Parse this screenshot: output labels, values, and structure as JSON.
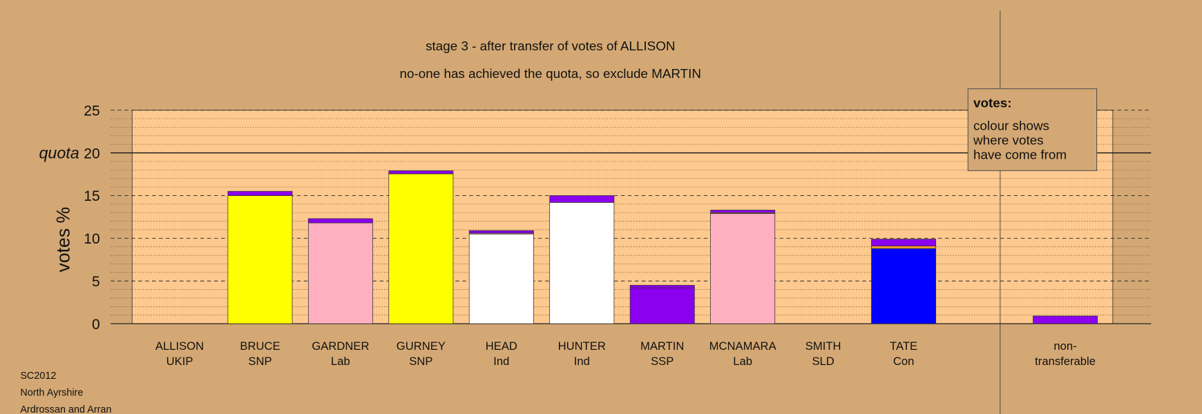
{
  "chart_data": {
    "type": "stacked-bar",
    "title": "stage 3 - after transfer of votes of ALLISON",
    "subtitle": "no-one has achieved the quota, so exclude MARTIN",
    "y_label": "votes %",
    "ylim": [
      0,
      25
    ],
    "yticks": [
      0,
      5,
      10,
      15,
      20,
      25
    ],
    "minor_yticks": [
      1,
      2,
      3,
      4,
      6,
      7,
      8,
      9,
      11,
      12,
      13,
      14,
      16,
      17,
      18,
      19,
      21,
      22,
      23,
      24
    ],
    "quota": 20,
    "quota_label": "quota",
    "categories": [
      [
        "ALLISON",
        "UKIP"
      ],
      [
        "BRUCE",
        "SNP"
      ],
      [
        "GARDNER",
        "Lab"
      ],
      [
        "GURNEY",
        "SNP"
      ],
      [
        "HEAD",
        "Ind"
      ],
      [
        "HUNTER",
        "Ind"
      ],
      [
        "MARTIN",
        "SSP"
      ],
      [
        "MCNAMARA",
        "Lab"
      ],
      [
        "SMITH",
        "SLD"
      ],
      [
        "TATE",
        "Con"
      ],
      [
        "non-",
        "transferable"
      ]
    ],
    "stacks": [
      [],
      [
        {
          "color": "#ffff00",
          "value": 15.0
        },
        {
          "color": "#8b00ee",
          "value": 0.5
        }
      ],
      [
        {
          "color": "#ffb0c0",
          "value": 11.8
        },
        {
          "color": "#8b00ee",
          "value": 0.5
        }
      ],
      [
        {
          "color": "#ffff00",
          "value": 17.55
        },
        {
          "color": "#8b00ee",
          "value": 0.35
        }
      ],
      [
        {
          "color": "#ffffff",
          "value": 10.5
        },
        {
          "color": "#ffb0c0",
          "value": 0.1
        },
        {
          "color": "#8b00ee",
          "value": 0.3
        }
      ],
      [
        {
          "color": "#ffffff",
          "value": 14.2
        },
        {
          "color": "#8b00ee",
          "value": 0.8
        }
      ],
      [
        {
          "color": "#8b00ee",
          "value": 4.2
        },
        {
          "color": "#8b00ee",
          "value": 0.3
        }
      ],
      [
        {
          "color": "#ffb0c0",
          "value": 12.9
        },
        {
          "color": "#ff9933",
          "value": 0.1
        },
        {
          "color": "#8b00ee",
          "value": 0.3
        }
      ],
      [],
      [
        {
          "color": "#0000ff",
          "value": 8.8
        },
        {
          "color": "#ff9933",
          "value": 0.3
        },
        {
          "color": "#8b00ee",
          "value": 0.8
        }
      ],
      [
        {
          "color": "#8b00ee",
          "value": 0.9
        }
      ]
    ],
    "note_title": "votes:",
    "note_lines": [
      "colour shows",
      "where votes",
      "have come from"
    ],
    "footer": [
      "SC2012",
      "North Ayrshire",
      "Ardrossan and Arran"
    ]
  }
}
